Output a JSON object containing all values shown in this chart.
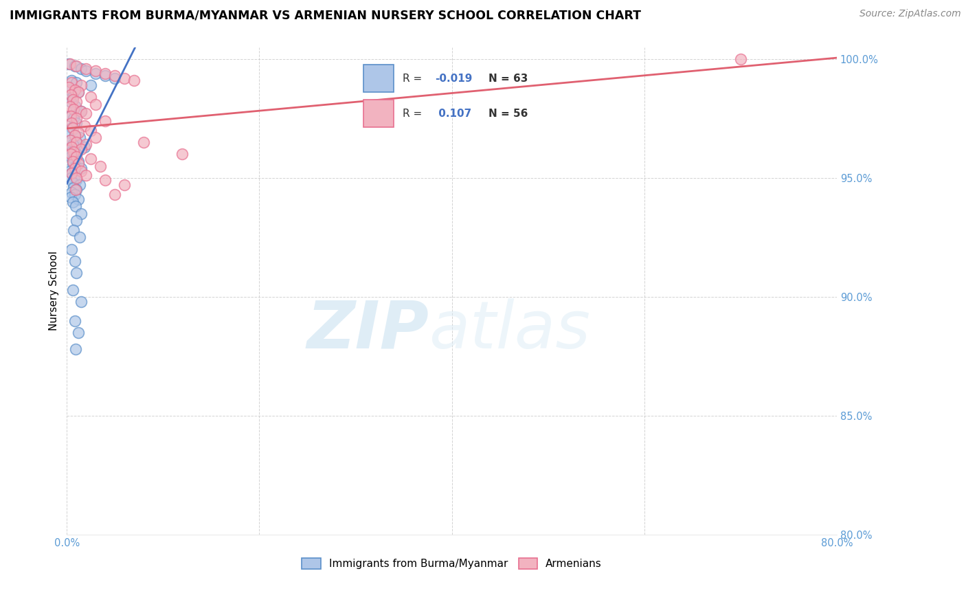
{
  "title": "IMMIGRANTS FROM BURMA/MYANMAR VS ARMENIAN NURSERY SCHOOL CORRELATION CHART",
  "source": "Source: ZipAtlas.com",
  "ylabel": "Nursery School",
  "watermark": "ZIPatlas",
  "xmin": 0.0,
  "xmax": 80.0,
  "ymin": 80.0,
  "ymax": 100.5,
  "yticks": [
    80.0,
    85.0,
    90.0,
    95.0,
    100.0
  ],
  "xticks": [
    0.0,
    20.0,
    40.0,
    60.0,
    80.0
  ],
  "xtick_labels": [
    "0.0%",
    "",
    "",
    "",
    "80.0%"
  ],
  "ytick_labels": [
    "80.0%",
    "85.0%",
    "90.0%",
    "95.0%",
    "100.0%"
  ],
  "blue_R": -0.019,
  "blue_N": 63,
  "pink_R": 0.107,
  "pink_N": 56,
  "legend_blue_label": "Immigrants from Burma/Myanmar",
  "legend_pink_label": "Armenians",
  "blue_color": "#aec6e8",
  "pink_color": "#f2b3c0",
  "blue_edge_color": "#5b8fc9",
  "pink_edge_color": "#e87090",
  "blue_line_color": "#4472c4",
  "pink_line_color": "#e06070",
  "blue_scatter": [
    [
      0.2,
      99.8
    ],
    [
      0.8,
      99.7
    ],
    [
      1.5,
      99.6
    ],
    [
      2.0,
      99.5
    ],
    [
      3.0,
      99.4
    ],
    [
      4.0,
      99.3
    ],
    [
      5.0,
      99.2
    ],
    [
      0.5,
      99.1
    ],
    [
      1.0,
      99.0
    ],
    [
      2.5,
      98.9
    ],
    [
      0.3,
      98.7
    ],
    [
      1.2,
      98.6
    ],
    [
      0.6,
      98.4
    ],
    [
      0.4,
      98.2
    ],
    [
      0.9,
      98.0
    ],
    [
      1.5,
      97.8
    ],
    [
      0.3,
      97.6
    ],
    [
      0.7,
      97.5
    ],
    [
      1.0,
      97.3
    ],
    [
      0.5,
      97.1
    ],
    [
      0.2,
      96.9
    ],
    [
      0.8,
      96.8
    ],
    [
      1.3,
      96.7
    ],
    [
      0.4,
      96.6
    ],
    [
      1.0,
      96.5
    ],
    [
      0.6,
      96.4
    ],
    [
      1.8,
      96.3
    ],
    [
      0.3,
      96.2
    ],
    [
      0.5,
      96.1
    ],
    [
      1.0,
      96.0
    ],
    [
      0.4,
      95.9
    ],
    [
      0.7,
      95.8
    ],
    [
      1.2,
      95.7
    ],
    [
      0.6,
      95.6
    ],
    [
      0.9,
      95.5
    ],
    [
      1.5,
      95.4
    ],
    [
      0.3,
      95.3
    ],
    [
      0.5,
      95.2
    ],
    [
      0.8,
      95.1
    ],
    [
      0.4,
      95.0
    ],
    [
      1.0,
      94.9
    ],
    [
      0.6,
      94.8
    ],
    [
      1.3,
      94.7
    ],
    [
      0.7,
      94.6
    ],
    [
      1.0,
      94.5
    ],
    [
      0.5,
      94.4
    ],
    [
      0.8,
      94.3
    ],
    [
      0.4,
      94.2
    ],
    [
      1.2,
      94.1
    ],
    [
      0.6,
      94.0
    ],
    [
      0.9,
      93.8
    ],
    [
      1.5,
      93.5
    ],
    [
      1.0,
      93.2
    ],
    [
      0.7,
      92.8
    ],
    [
      1.3,
      92.5
    ],
    [
      0.5,
      92.0
    ],
    [
      0.8,
      91.5
    ],
    [
      1.0,
      91.0
    ],
    [
      0.6,
      90.3
    ],
    [
      1.5,
      89.8
    ],
    [
      0.8,
      89.0
    ],
    [
      1.2,
      88.5
    ],
    [
      0.9,
      87.8
    ]
  ],
  "pink_scatter": [
    [
      0.3,
      99.8
    ],
    [
      1.0,
      99.7
    ],
    [
      2.0,
      99.6
    ],
    [
      3.0,
      99.5
    ],
    [
      4.0,
      99.4
    ],
    [
      5.0,
      99.3
    ],
    [
      6.0,
      99.2
    ],
    [
      7.0,
      99.1
    ],
    [
      0.5,
      99.0
    ],
    [
      1.5,
      98.9
    ],
    [
      0.2,
      98.8
    ],
    [
      0.8,
      98.7
    ],
    [
      1.2,
      98.6
    ],
    [
      0.4,
      98.5
    ],
    [
      2.5,
      98.4
    ],
    [
      0.6,
      98.3
    ],
    [
      1.0,
      98.2
    ],
    [
      3.0,
      98.1
    ],
    [
      0.3,
      98.0
    ],
    [
      0.7,
      97.9
    ],
    [
      1.5,
      97.8
    ],
    [
      2.0,
      97.7
    ],
    [
      0.4,
      97.6
    ],
    [
      1.0,
      97.5
    ],
    [
      4.0,
      97.4
    ],
    [
      0.5,
      97.3
    ],
    [
      1.8,
      97.2
    ],
    [
      0.6,
      97.1
    ],
    [
      2.5,
      97.0
    ],
    [
      1.2,
      96.9
    ],
    [
      0.8,
      96.8
    ],
    [
      3.0,
      96.7
    ],
    [
      0.3,
      96.6
    ],
    [
      1.0,
      96.5
    ],
    [
      2.0,
      96.4
    ],
    [
      0.5,
      96.3
    ],
    [
      1.5,
      96.2
    ],
    [
      0.7,
      96.1
    ],
    [
      0.4,
      96.0
    ],
    [
      1.0,
      95.9
    ],
    [
      2.5,
      95.8
    ],
    [
      0.6,
      95.7
    ],
    [
      1.2,
      95.6
    ],
    [
      3.5,
      95.5
    ],
    [
      0.8,
      95.4
    ],
    [
      1.5,
      95.3
    ],
    [
      0.5,
      95.2
    ],
    [
      2.0,
      95.1
    ],
    [
      1.0,
      95.0
    ],
    [
      4.0,
      94.9
    ],
    [
      6.0,
      94.7
    ],
    [
      8.0,
      96.5
    ],
    [
      12.0,
      96.0
    ],
    [
      70.0,
      100.0
    ],
    [
      0.9,
      94.5
    ],
    [
      5.0,
      94.3
    ]
  ],
  "title_fontsize": 12.5,
  "source_fontsize": 10,
  "axis_label_fontsize": 11,
  "tick_fontsize": 10.5,
  "marker_size": 130
}
